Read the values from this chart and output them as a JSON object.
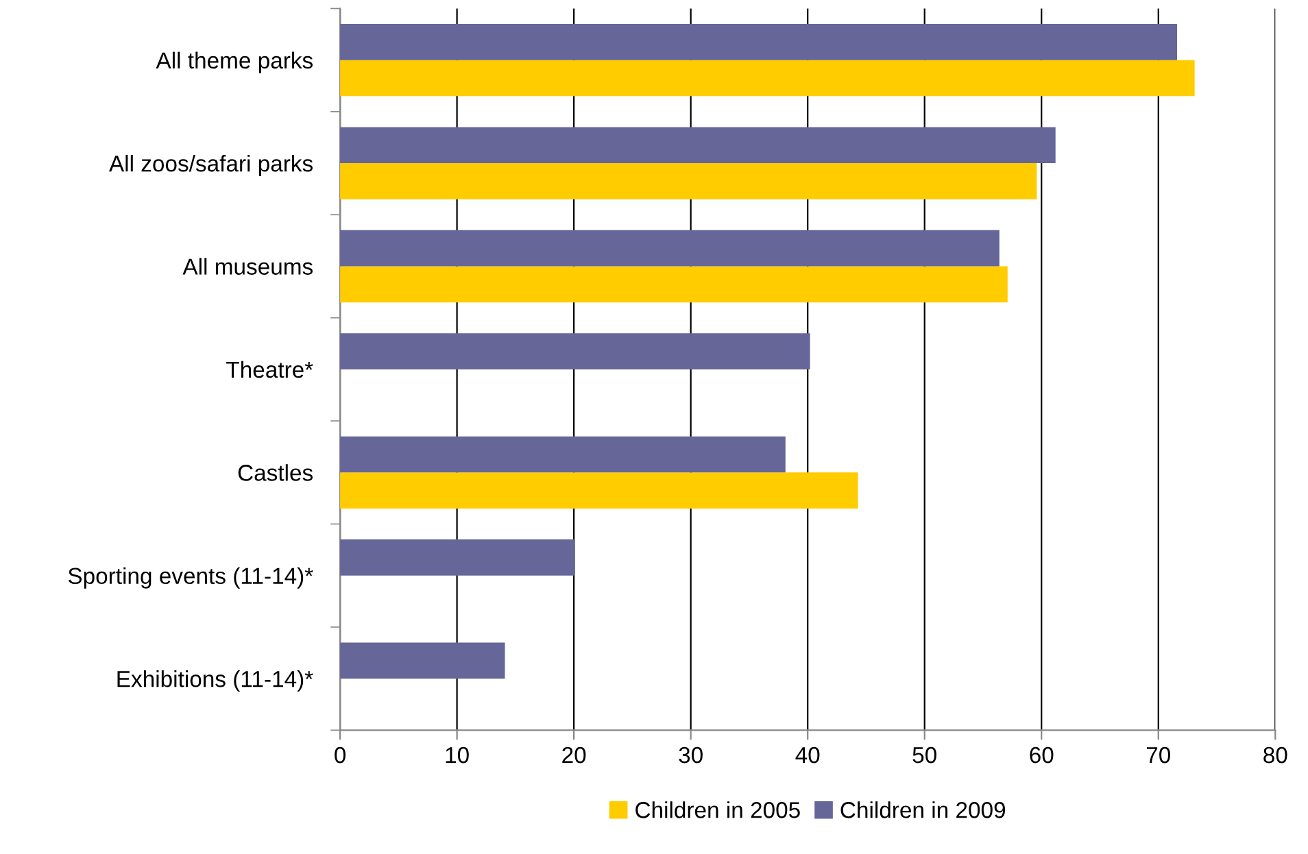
{
  "chart_data": {
    "type": "bar",
    "orientation": "horizontal",
    "categories": [
      "All theme parks",
      "All zoos/safari parks",
      "All museums",
      "Theatre*",
      "Castles",
      "Sporting events (11-14)*",
      "Exhibitions (11-14)*"
    ],
    "series": [
      {
        "name": "Children in 2005",
        "color": "#ffcc00",
        "values": [
          73.1,
          59.6,
          57.1,
          null,
          44.3,
          null,
          null
        ]
      },
      {
        "name": "Children in 2009",
        "color": "#666699",
        "values": [
          71.6,
          61.2,
          56.4,
          40.2,
          38.1,
          20.1,
          14.1
        ]
      }
    ],
    "xlim": [
      0,
      80
    ],
    "xticks": [
      0,
      10,
      20,
      30,
      40,
      50,
      60,
      70,
      80
    ],
    "grid": "x",
    "legend": "bottom"
  }
}
